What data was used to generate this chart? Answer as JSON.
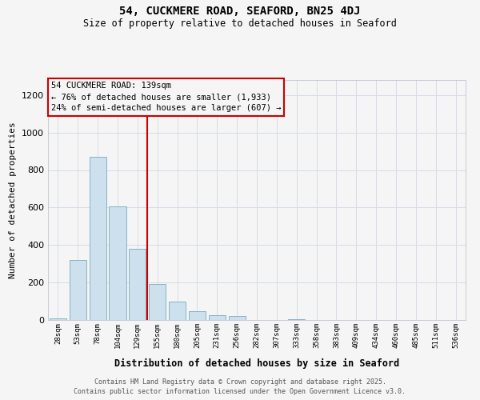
{
  "title": "54, CUCKMERE ROAD, SEAFORD, BN25 4DJ",
  "subtitle": "Size of property relative to detached houses in Seaford",
  "xlabel": "Distribution of detached houses by size in Seaford",
  "ylabel": "Number of detached properties",
  "bar_labels": [
    "28sqm",
    "53sqm",
    "78sqm",
    "104sqm",
    "129sqm",
    "155sqm",
    "180sqm",
    "205sqm",
    "231sqm",
    "256sqm",
    "282sqm",
    "307sqm",
    "333sqm",
    "358sqm",
    "383sqm",
    "409sqm",
    "434sqm",
    "460sqm",
    "485sqm",
    "511sqm",
    "536sqm"
  ],
  "bar_values": [
    10,
    320,
    870,
    605,
    380,
    190,
    100,
    45,
    25,
    20,
    0,
    0,
    5,
    0,
    0,
    0,
    0,
    0,
    0,
    0,
    0
  ],
  "bar_color": "#cce0ee",
  "bar_edgecolor": "#7aaabb",
  "ylim": [
    0,
    1280
  ],
  "yticks": [
    0,
    200,
    400,
    600,
    800,
    1000,
    1200
  ],
  "property_line_x": 4.5,
  "property_line_color": "#cc0000",
  "annotation_title": "54 CUCKMERE ROAD: 139sqm",
  "annotation_line1": "← 76% of detached houses are smaller (1,933)",
  "annotation_line2": "24% of semi-detached houses are larger (607) →",
  "annotation_box_edgecolor": "#cc0000",
  "footer_line1": "Contains HM Land Registry data © Crown copyright and database right 2025.",
  "footer_line2": "Contains public sector information licensed under the Open Government Licence v3.0.",
  "background_color": "#f5f5f5",
  "grid_color": "#d8dce8"
}
